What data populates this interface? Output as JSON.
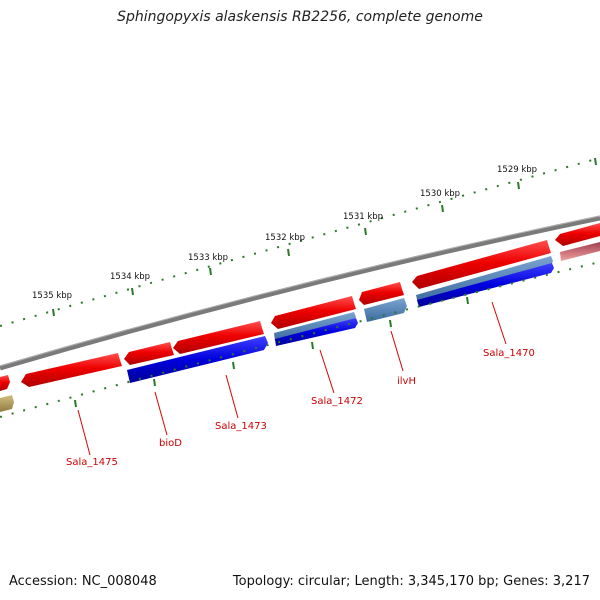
{
  "title": "Sphingopyxis alaskensis RB2256, complete genome",
  "footer": {
    "accession": "Accession: NC_008048",
    "summary": "Topology: circular; Length: 3,345,170 bp; Genes: 3,217"
  },
  "colors": {
    "backbone": "#7a7a7a",
    "forward_gene": "#ee0000",
    "reverse_gene": "#0000dd",
    "reverse_gene_alt": "#4a7ab0",
    "faded_gene": "#e87070",
    "tick": "#2a7a2a",
    "label": "#cc0000",
    "olive_gene": "#b0a060"
  },
  "ticks": [
    {
      "label": "1535 kbp"
    },
    {
      "label": "1534 kbp"
    },
    {
      "label": "1533 kbp"
    },
    {
      "label": "1532 kbp"
    },
    {
      "label": "1531 kbp"
    },
    {
      "label": "1530 kbp"
    },
    {
      "label": "1529 kbp"
    }
  ],
  "gene_labels": [
    {
      "label": "Sala_1475"
    },
    {
      "label": "bioD"
    },
    {
      "label": "Sala_1473"
    },
    {
      "label": "Sala_1472"
    },
    {
      "label": "ilvH"
    },
    {
      "label": "Sala_1470"
    }
  ]
}
